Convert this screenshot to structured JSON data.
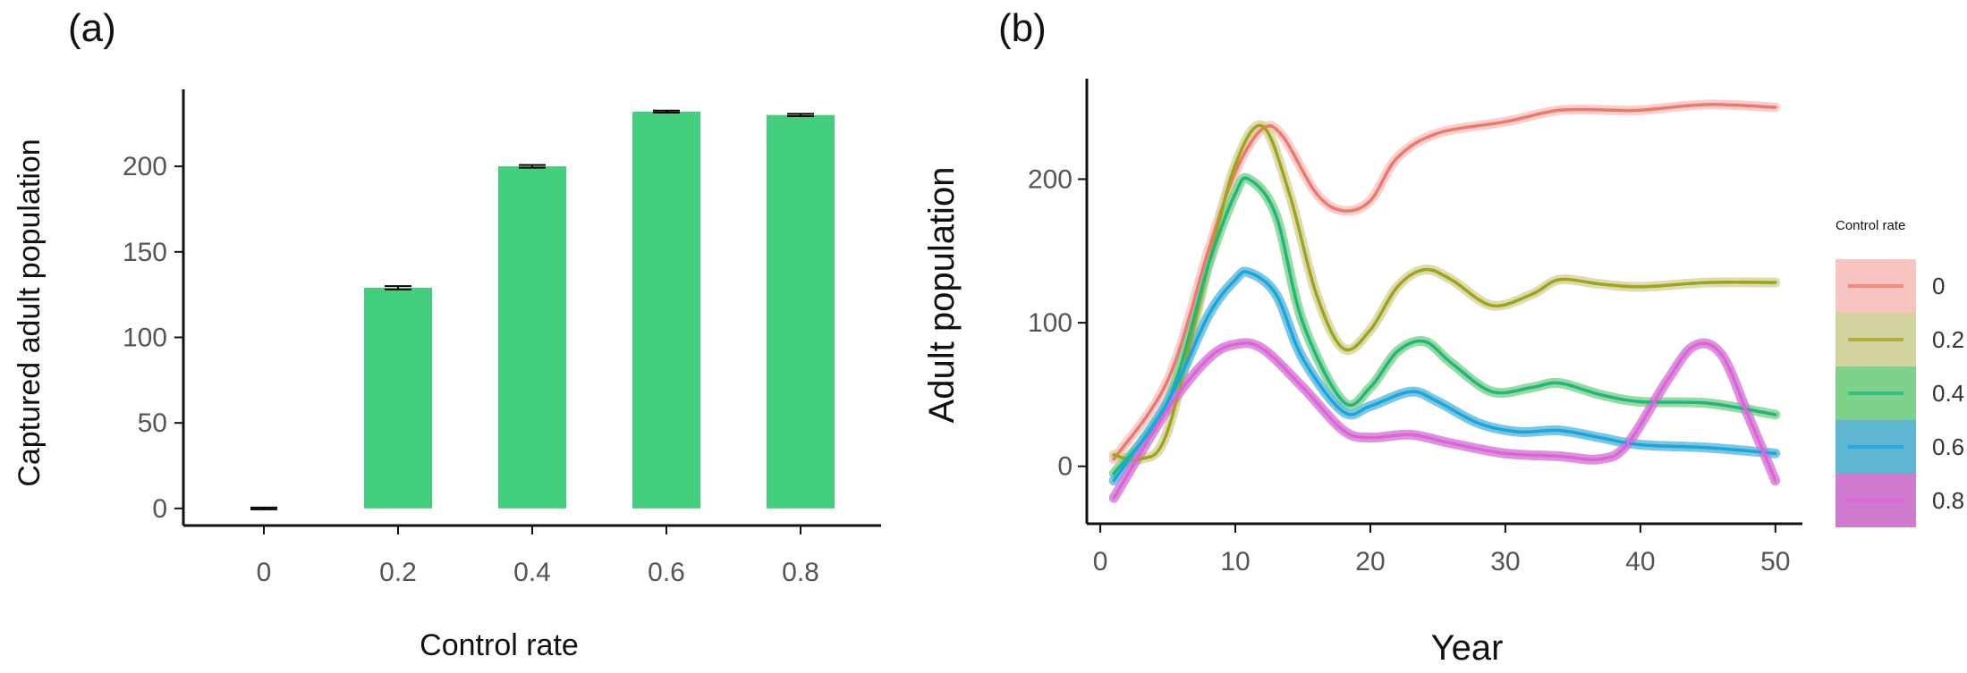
{
  "chart_data": [
    {
      "panel": "(a)",
      "type": "bar",
      "xlabel": "Control rate",
      "ylabel": "Captured adult population",
      "categories": [
        "0",
        "0.2",
        "0.4",
        "0.6",
        "0.8"
      ],
      "values": [
        0,
        129,
        200,
        232,
        230
      ],
      "errors": [
        0.5,
        1.0,
        0.8,
        0.6,
        0.7
      ],
      "ylim": [
        -10,
        245
      ],
      "yticks": [
        0,
        50,
        100,
        150,
        200
      ],
      "colors": {
        "bar": "#44CF7E",
        "error": "#000000"
      }
    },
    {
      "panel": "(b)",
      "type": "line",
      "xlabel": "Year",
      "ylabel": "Adult population",
      "xlim": [
        -1,
        52
      ],
      "ylim": [
        -40,
        270
      ],
      "xticks": [
        0,
        10,
        20,
        30,
        40,
        50
      ],
      "yticks": [
        0,
        100,
        200
      ],
      "legend": {
        "title": "Control rate",
        "position": "right"
      },
      "series": [
        {
          "name": "0",
          "color": "#F0776C",
          "band": "#F8C4C0",
          "points": [
            [
              1,
              5
            ],
            [
              5,
              60
            ],
            [
              8,
              150
            ],
            [
              10,
              205
            ],
            [
              12,
              235
            ],
            [
              13.5,
              230
            ],
            [
              16,
              190
            ],
            [
              18,
              178
            ],
            [
              20,
              185
            ],
            [
              22,
              215
            ],
            [
              25,
              232
            ],
            [
              30,
              240
            ],
            [
              34,
              248
            ],
            [
              38,
              248
            ],
            [
              40,
              248
            ],
            [
              45,
              252
            ],
            [
              50,
              250
            ]
          ]
        },
        {
          "name": "0.2",
          "color": "#A3A318",
          "band": "#D3D3A0",
          "points": [
            [
              1,
              8
            ],
            [
              3,
              5
            ],
            [
              5,
              25
            ],
            [
              8,
              140
            ],
            [
              10,
              210
            ],
            [
              12,
              237
            ],
            [
              14,
              190
            ],
            [
              16,
              120
            ],
            [
              18,
              82
            ],
            [
              20,
              95
            ],
            [
              22,
              125
            ],
            [
              24,
              137
            ],
            [
              26,
              130
            ],
            [
              29,
              112
            ],
            [
              32,
              120
            ],
            [
              34,
              130
            ],
            [
              37,
              127
            ],
            [
              40,
              125
            ],
            [
              45,
              128
            ],
            [
              50,
              128
            ]
          ]
        },
        {
          "name": "0.4",
          "color": "#1DB87E",
          "band": "#7ED18A",
          "points": [
            [
              1,
              -5
            ],
            [
              5,
              45
            ],
            [
              8,
              140
            ],
            [
              10,
              190
            ],
            [
              11,
              200
            ],
            [
              13,
              175
            ],
            [
              15,
              100
            ],
            [
              18,
              45
            ],
            [
              20,
              55
            ],
            [
              22,
              80
            ],
            [
              24,
              87
            ],
            [
              26,
              72
            ],
            [
              29,
              52
            ],
            [
              32,
              55
            ],
            [
              34,
              58
            ],
            [
              37,
              50
            ],
            [
              40,
              45
            ],
            [
              45,
              44
            ],
            [
              50,
              36
            ]
          ]
        },
        {
          "name": "0.6",
          "color": "#12A8E8",
          "band": "#5FB6D3",
          "points": [
            [
              1,
              -10
            ],
            [
              5,
              45
            ],
            [
              8,
              105
            ],
            [
              10,
              130
            ],
            [
              11,
              135
            ],
            [
              13,
              120
            ],
            [
              15,
              75
            ],
            [
              18,
              38
            ],
            [
              20,
              42
            ],
            [
              23,
              52
            ],
            [
              25,
              45
            ],
            [
              28,
              30
            ],
            [
              31,
              24
            ],
            [
              34,
              25
            ],
            [
              37,
              20
            ],
            [
              40,
              15
            ],
            [
              45,
              13
            ],
            [
              50,
              9
            ]
          ]
        },
        {
          "name": "0.8",
          "color": "#E45FE0",
          "band": "#D07ACF",
          "points": [
            [
              1,
              -22
            ],
            [
              5,
              40
            ],
            [
              8,
              75
            ],
            [
              10,
              85
            ],
            [
              12,
              82
            ],
            [
              15,
              55
            ],
            [
              18,
              25
            ],
            [
              20,
              20
            ],
            [
              23,
              22
            ],
            [
              26,
              16
            ],
            [
              30,
              9
            ],
            [
              34,
              7
            ],
            [
              37,
              5
            ],
            [
              39,
              15
            ],
            [
              42,
              60
            ],
            [
              44,
              84
            ],
            [
              46,
              78
            ],
            [
              48,
              35
            ],
            [
              50,
              -10
            ]
          ]
        }
      ]
    }
  ]
}
